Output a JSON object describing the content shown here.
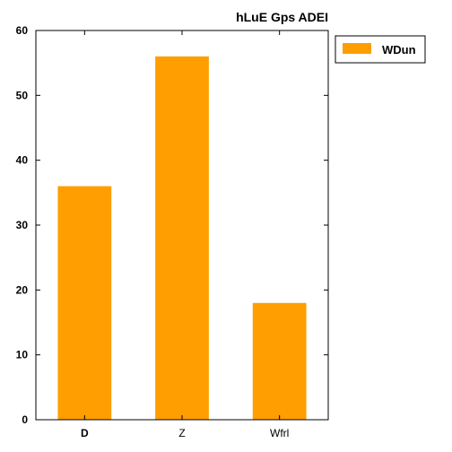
{
  "chart_data": {
    "type": "bar",
    "title": "hLuE Gps ADEI",
    "xlabel": "",
    "ylabel": "",
    "categories": [
      "D",
      "Z",
      "Wfrl"
    ],
    "category_bold": [
      true,
      false,
      false
    ],
    "series": [
      {
        "name": "WDun",
        "color": "#ff9e00",
        "values": [
          36,
          56,
          18
        ]
      }
    ],
    "ylim": [
      0,
      60
    ],
    "yticks": [
      0,
      10,
      20,
      30,
      40,
      50,
      60
    ],
    "grid": false,
    "legend_position": "outside-top-right"
  }
}
